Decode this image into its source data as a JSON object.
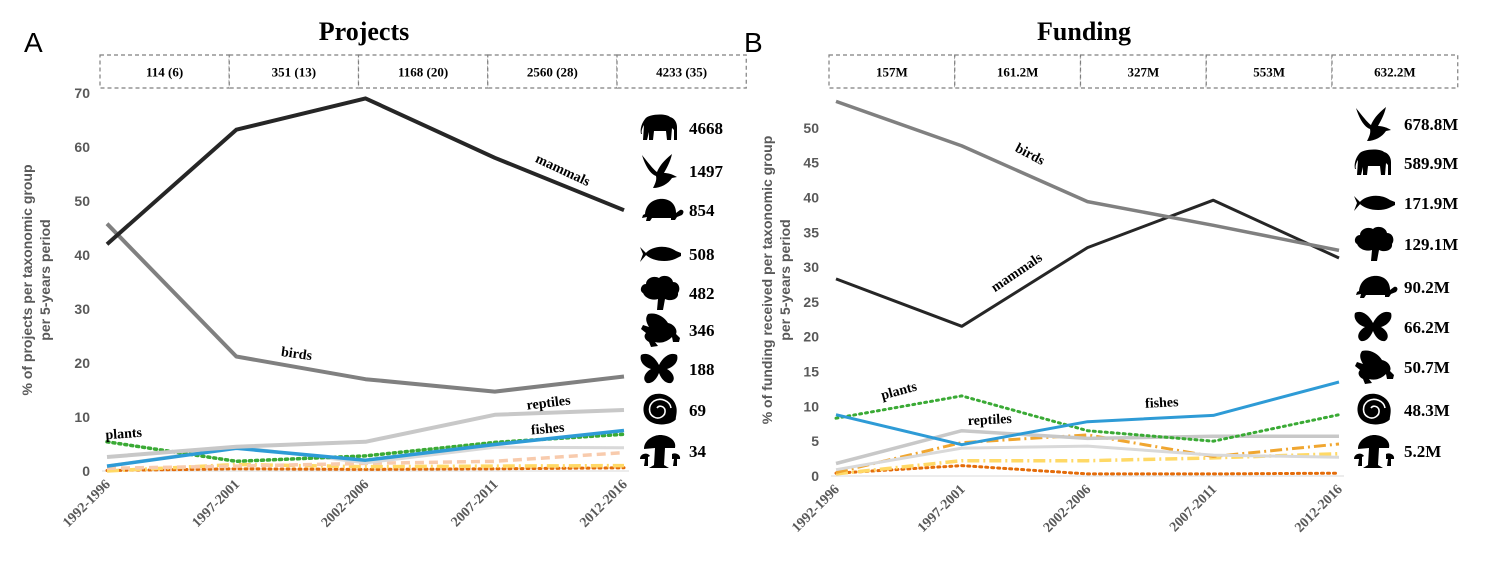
{
  "chart_data": [
    {
      "type": "line",
      "panel": "A",
      "title": "Projects",
      "ylabel_line1": "% of projects per taxonomic group",
      "ylabel_line2": "per 5-years period",
      "ylim": [
        0,
        70
      ],
      "yticks": [
        0,
        10,
        20,
        30,
        40,
        50,
        60,
        70
      ],
      "categories": [
        "1992-1996",
        "1997-2001",
        "2002-2006",
        "2007-2011",
        "2012-2016"
      ],
      "period_totals": [
        "114 (6)",
        "351 (13)",
        "1168 (20)",
        "2560 (28)",
        "4233 (35)"
      ],
      "series": [
        {
          "name": "mammals",
          "label": "mammals",
          "color": "#262626",
          "style": "solid",
          "width": 4,
          "values": [
            42,
            63.2,
            69,
            58,
            48.3
          ]
        },
        {
          "name": "birds",
          "label": "birds",
          "color": "#808080",
          "style": "solid",
          "width": 4,
          "values": [
            45.8,
            21.2,
            17,
            14.7,
            17.5
          ]
        },
        {
          "name": "reptiles",
          "label": "reptiles",
          "color": "#c8c8c8",
          "style": "solid",
          "width": 4,
          "values": [
            2.6,
            4.5,
            5.4,
            10.4,
            11.3
          ]
        },
        {
          "name": "fishes",
          "label": "fishes",
          "color": "#2e9bd6",
          "style": "solid",
          "width": 3.5,
          "values": [
            0.9,
            4.2,
            2,
            4.9,
            7.5
          ]
        },
        {
          "name": "plants",
          "label": "plants",
          "color": "#3aaa35",
          "style": "dotted",
          "width": 3.5,
          "values": [
            5.4,
            1.8,
            2.8,
            5.3,
            6.8
          ]
        },
        {
          "name": "amphibians",
          "label": "",
          "color": "#d9d9d9",
          "style": "solid",
          "width": 3,
          "values": [
            0.9,
            4.5,
            1.5,
            4.4,
            4.3
          ]
        },
        {
          "name": "invertebrates",
          "label": "",
          "color": "#f8cbad",
          "style": "dashed",
          "width": 3.5,
          "values": [
            0.5,
            0.9,
            1.4,
            1.8,
            3.4
          ]
        },
        {
          "name": "molluscs",
          "label": "",
          "color": "#ffd966",
          "style": "dashdot",
          "width": 3.5,
          "values": [
            0,
            1.2,
            0.8,
            0.9,
            1.0
          ]
        },
        {
          "name": "fungi",
          "label": "",
          "color": "#e46c0a",
          "style": "dotted",
          "width": 3,
          "values": [
            0.1,
            0.4,
            0.3,
            0.4,
            0.6
          ]
        }
      ],
      "legend": [
        {
          "icon": "elephant-icon",
          "value": "4668"
        },
        {
          "icon": "bird-icon",
          "value": "1497"
        },
        {
          "icon": "turtle-icon",
          "value": "854"
        },
        {
          "icon": "fish-icon",
          "value": "508"
        },
        {
          "icon": "tree-icon",
          "value": "482"
        },
        {
          "icon": "frog-icon",
          "value": "346"
        },
        {
          "icon": "butterfly-icon",
          "value": "188"
        },
        {
          "icon": "nautilus-icon",
          "value": "69"
        },
        {
          "icon": "mushroom-icon",
          "value": "34"
        }
      ]
    },
    {
      "type": "line",
      "panel": "B",
      "title": "Funding",
      "ylabel_line1": "% of funding received per taxonomic group",
      "ylabel_line2": "per 5-years period",
      "ylim": [
        0,
        55
      ],
      "yticks": [
        0,
        5,
        10,
        15,
        20,
        25,
        30,
        35,
        40,
        45,
        50
      ],
      "categories": [
        "1992-1996",
        "1997-2001",
        "2002-2006",
        "2007-2011",
        "2012-2016"
      ],
      "period_totals": [
        "157M",
        "161.2M",
        "327M",
        "553M",
        "632.2M"
      ],
      "series": [
        {
          "name": "birds",
          "label": "birds",
          "color": "#808080",
          "style": "solid",
          "width": 3.5,
          "values": [
            53.8,
            47.4,
            39.4,
            36,
            32.4
          ]
        },
        {
          "name": "mammals",
          "label": "mammals",
          "color": "#262626",
          "style": "solid",
          "width": 3,
          "values": [
            28.3,
            21.5,
            32.8,
            39.6,
            31.3
          ]
        },
        {
          "name": "fishes",
          "label": "fishes",
          "color": "#2e9bd6",
          "style": "solid",
          "width": 3,
          "values": [
            8.8,
            4.5,
            7.8,
            8.7,
            13.5
          ]
        },
        {
          "name": "plants",
          "label": "plants",
          "color": "#3aaa35",
          "style": "dotted",
          "width": 3,
          "values": [
            8.3,
            11.5,
            6.5,
            5,
            8.8
          ]
        },
        {
          "name": "reptiles",
          "label": "reptiles",
          "color": "#c8c8c8",
          "style": "solid",
          "width": 3.5,
          "values": [
            1.8,
            6.5,
            5.4,
            5.7,
            5.7
          ]
        },
        {
          "name": "amphibians",
          "label": "",
          "color": "#d9d9d9",
          "style": "solid",
          "width": 3,
          "values": [
            0.9,
            4.0,
            4.3,
            3.0,
            2.7
          ]
        },
        {
          "name": "invertebrates",
          "label": "",
          "color": "#f0a630",
          "style": "dashdot",
          "width": 3,
          "values": [
            0.5,
            4.8,
            5.9,
            2.8,
            4.6
          ]
        },
        {
          "name": "molluscs",
          "label": "",
          "color": "#ffd966",
          "style": "dashdot",
          "width": 3.5,
          "values": [
            0.3,
            2.2,
            2.2,
            2.6,
            3.2
          ]
        },
        {
          "name": "fungi",
          "label": "",
          "color": "#e46c0a",
          "style": "dotted",
          "width": 3,
          "values": [
            0.4,
            1.5,
            0.3,
            0.3,
            0.4
          ]
        }
      ],
      "legend": [
        {
          "icon": "bird-icon",
          "value": "678.8M"
        },
        {
          "icon": "elephant-icon",
          "value": "589.9M"
        },
        {
          "icon": "fish-icon",
          "value": "171.9M"
        },
        {
          "icon": "tree-icon",
          "value": "129.1M"
        },
        {
          "icon": "turtle-icon",
          "value": "90.2M"
        },
        {
          "icon": "butterfly-icon",
          "value": "66.2M"
        },
        {
          "icon": "frog-icon",
          "value": "50.7M"
        },
        {
          "icon": "nautilus-icon",
          "value": "48.3M"
        },
        {
          "icon": "mushroom-icon",
          "value": "5.2M"
        }
      ]
    }
  ]
}
